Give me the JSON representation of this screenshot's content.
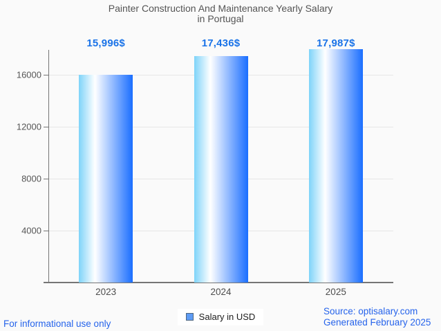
{
  "title": {
    "line1": "Painter Construction And Maintenance Yearly Salary",
    "line2": "in Portugal"
  },
  "chart_data": {
    "type": "bar",
    "title": "Painter Construction And Maintenance Yearly Salary in Portugal",
    "categories": [
      "2023",
      "2024",
      "2025"
    ],
    "series": [
      {
        "name": "Salary in USD",
        "values": [
          15996,
          17436,
          17987
        ],
        "value_labels": [
          "15,996$",
          "17,436$",
          "17,987$"
        ]
      }
    ],
    "xlabel": "",
    "ylabel": "",
    "ylim": [
      0,
      17920
    ],
    "y_ticks": [
      4000,
      8000,
      12000,
      16000
    ],
    "grid": "horizontal",
    "legend_position": "bottom",
    "bar_gradient": [
      "#7ed3f9",
      "#ffffff",
      "#1a6eff"
    ]
  },
  "legend": {
    "label": "Salary in USD",
    "marker_fill": "#5e9cf5",
    "marker_border": "#4d657e"
  },
  "footer": {
    "left": "For informational use only",
    "source": "Source: optisalary.com",
    "generated": "Generated February 2025"
  },
  "colors": {
    "background": "#fafafa",
    "title_text": "#545454",
    "value_label_text": "#1a73e8",
    "axis_line": "#757575",
    "gridline": "#e6e6e6",
    "tick_label_text": "#565656",
    "footer_text": "#2563eb"
  }
}
